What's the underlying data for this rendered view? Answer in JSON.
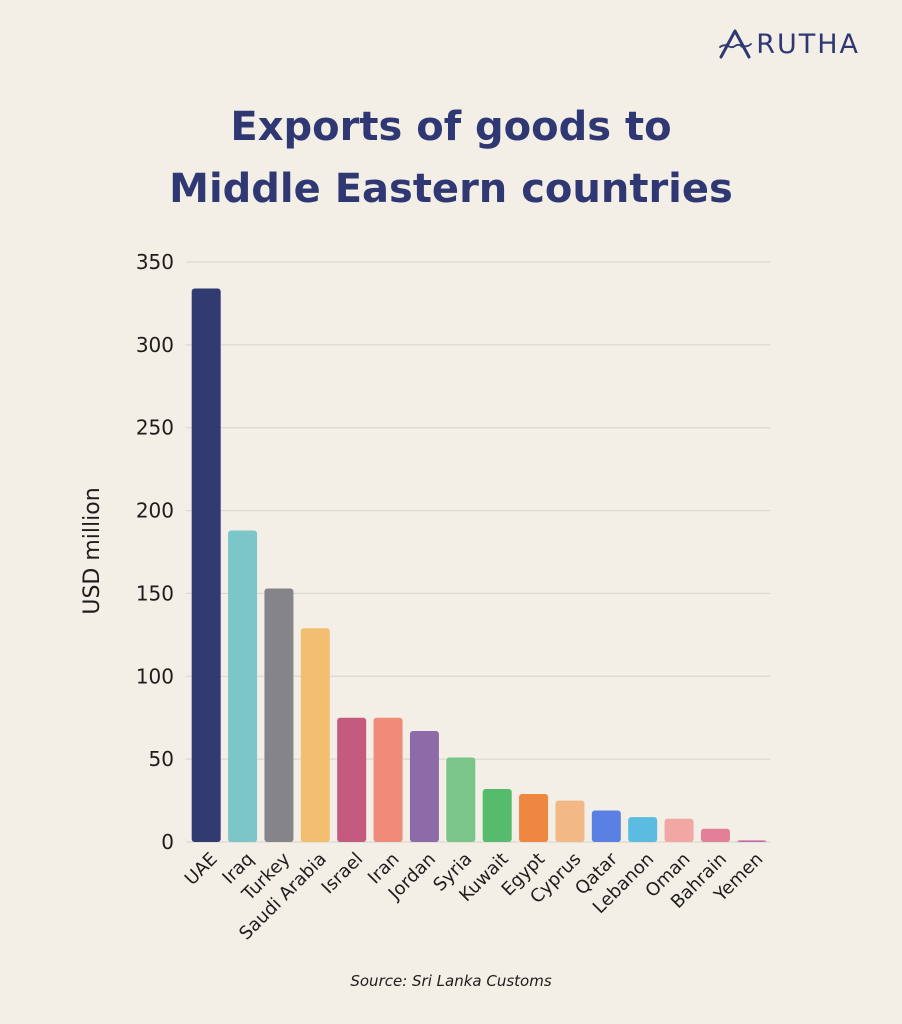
{
  "brand": {
    "name": "RUTHA",
    "logo_icon": "arutha-a-logo-icon"
  },
  "title_lines": [
    "Exports of goods to",
    "Middle Eastern countries"
  ],
  "source": "Source: Sri Lanka Customs",
  "colors": {
    "background": "#f3efe6",
    "title": "#2f3873",
    "grid": "#d6d3cc"
  },
  "chart_data": {
    "type": "bar",
    "title": "Exports of goods to Middle Eastern countries",
    "xlabel": "",
    "ylabel": "USD million",
    "ylim": [
      0,
      350
    ],
    "yticks": [
      0,
      50,
      100,
      150,
      200,
      250,
      300,
      350
    ],
    "grid": true,
    "categories": [
      "UAE",
      "Iraq",
      "Turkey",
      "Saudi Arabia",
      "Israel",
      "Iran",
      "Jordan",
      "Syria",
      "Kuwait",
      "Egypt",
      "Cyprus",
      "Qatar",
      "Lebanon",
      "Oman",
      "Bahrain",
      "Yemen"
    ],
    "values": [
      334,
      188,
      153,
      129,
      75,
      75,
      67,
      51,
      32,
      29,
      25,
      19,
      15,
      14,
      8,
      1
    ],
    "colors": [
      "#323a72",
      "#7cc5c9",
      "#848489",
      "#f2bf70",
      "#c45a7e",
      "#f08a79",
      "#8d6aa8",
      "#7ac588",
      "#56bb6a",
      "#ee8740",
      "#f2b886",
      "#5a80e4",
      "#5bbbe0",
      "#f1a8a4",
      "#e37f98",
      "#c46aa6"
    ]
  }
}
